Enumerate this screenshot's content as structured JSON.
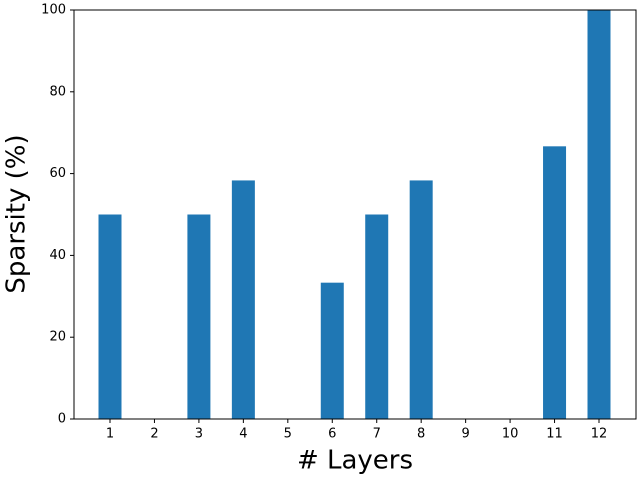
{
  "chart_data": {
    "type": "bar",
    "xlabel": "# Layers",
    "ylabel": "Sparsity (%)",
    "categories": [
      "1",
      "2",
      "3",
      "4",
      "5",
      "6",
      "7",
      "8",
      "9",
      "10",
      "11",
      "12"
    ],
    "values": [
      50,
      0,
      50,
      58.33,
      0,
      33.33,
      50,
      58.33,
      0,
      0,
      66.67,
      100
    ],
    "color": "#1f77b4",
    "ylim": [
      0,
      100
    ],
    "yticks": [
      0,
      20,
      40,
      60,
      80,
      100
    ],
    "grid": false
  }
}
